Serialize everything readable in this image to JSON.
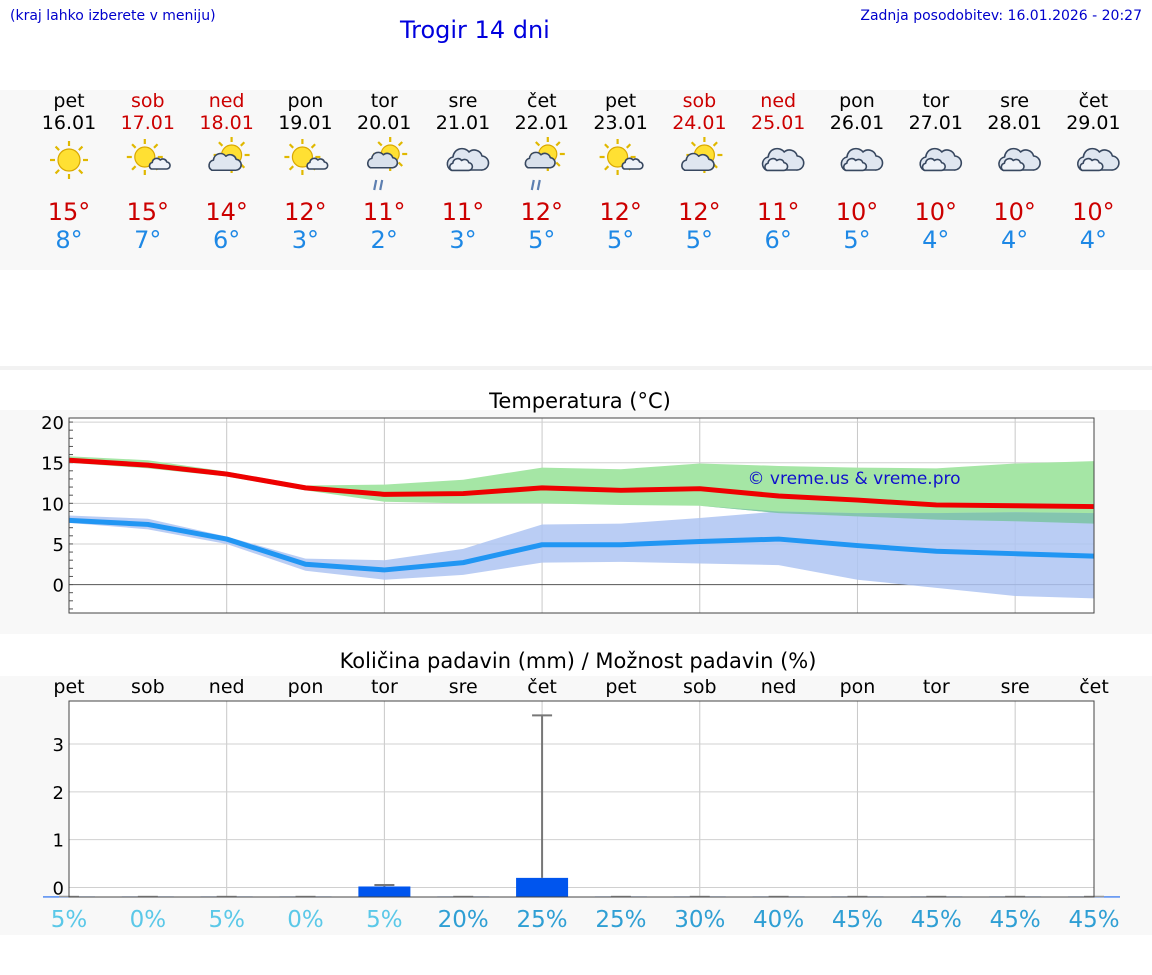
{
  "header": {
    "menu_hint": "(kraj lahko izberete v meniju)",
    "title": "Trogir 14 dni",
    "updated": "Zadnja posodobitev: 16.01.2026 - 20:27"
  },
  "days": [
    {
      "name": "pet",
      "date": "16.01",
      "weekend": false,
      "icon": "sun-icon",
      "tmax": "15°",
      "tmin": "8°"
    },
    {
      "name": "sob",
      "date": "17.01",
      "weekend": true,
      "icon": "sun-small-cloud-icon",
      "tmax": "15°",
      "tmin": "7°"
    },
    {
      "name": "ned",
      "date": "18.01",
      "weekend": true,
      "icon": "sun-cloud-icon",
      "tmax": "14°",
      "tmin": "6°"
    },
    {
      "name": "pon",
      "date": "19.01",
      "weekend": false,
      "icon": "sun-small-cloud-icon",
      "tmax": "12°",
      "tmin": "3°"
    },
    {
      "name": "tor",
      "date": "20.01",
      "weekend": false,
      "icon": "sun-cloud-rain-icon",
      "tmax": "11°",
      "tmin": "2°"
    },
    {
      "name": "sre",
      "date": "21.01",
      "weekend": false,
      "icon": "cloud-icon",
      "tmax": "11°",
      "tmin": "3°"
    },
    {
      "name": "čet",
      "date": "22.01",
      "weekend": false,
      "icon": "sun-cloud-rain-icon",
      "tmax": "12°",
      "tmin": "5°"
    },
    {
      "name": "pet",
      "date": "23.01",
      "weekend": false,
      "icon": "sun-small-cloud-icon",
      "tmax": "12°",
      "tmin": "5°"
    },
    {
      "name": "sob",
      "date": "24.01",
      "weekend": true,
      "icon": "sun-cloud-icon",
      "tmax": "12°",
      "tmin": "5°"
    },
    {
      "name": "ned",
      "date": "25.01",
      "weekend": true,
      "icon": "cloud-icon",
      "tmax": "11°",
      "tmin": "6°"
    },
    {
      "name": "pon",
      "date": "26.01",
      "weekend": false,
      "icon": "cloud-icon",
      "tmax": "10°",
      "tmin": "5°"
    },
    {
      "name": "tor",
      "date": "27.01",
      "weekend": false,
      "icon": "cloud-icon",
      "tmax": "10°",
      "tmin": "4°"
    },
    {
      "name": "sre",
      "date": "28.01",
      "weekend": false,
      "icon": "cloud-icon",
      "tmax": "10°",
      "tmin": "4°"
    },
    {
      "name": "čet",
      "date": "29.01",
      "weekend": false,
      "icon": "cloud-icon",
      "tmax": "10°",
      "tmin": "4°"
    }
  ],
  "colors": {
    "weekend": "#cc0000",
    "weekday": "#000000",
    "tmax": "#cc0000",
    "tmin": "#1e88e5",
    "max_line": "#ee0000",
    "min_line": "#2196f3",
    "max_band": "#a5e6a5",
    "min_band": "#aec4f2",
    "overlap_band": "#80c4a8",
    "bar": "#0055ee",
    "prob_low": "#5bc8e8",
    "prob_high": "#2f9fd4"
  },
  "chart_data": [
    {
      "type": "line",
      "title": "Temperatura (°C)",
      "watermark": "© vreme.us & vreme.pro",
      "ylim": [
        -3.5,
        20.5
      ],
      "yticks": [
        0,
        5,
        10,
        15,
        20
      ],
      "x": [
        0,
        1,
        2,
        3,
        4,
        5,
        6,
        7,
        8,
        9,
        10,
        11,
        12,
        13
      ],
      "series": [
        {
          "name": "max",
          "values": [
            15.3,
            14.7,
            13.6,
            11.9,
            11.1,
            11.2,
            11.9,
            11.6,
            11.8,
            10.9,
            10.4,
            9.8,
            9.7,
            9.6
          ]
        },
        {
          "name": "min",
          "values": [
            7.9,
            7.4,
            5.6,
            2.5,
            1.8,
            2.7,
            4.9,
            4.9,
            5.3,
            5.6,
            4.8,
            4.1,
            3.8,
            3.5
          ]
        }
      ],
      "max_band": {
        "low": [
          15.0,
          14.3,
          13.3,
          11.6,
          10.2,
          10.0,
          10.0,
          9.8,
          9.7,
          8.8,
          8.4,
          8.0,
          7.8,
          7.5
        ],
        "high": [
          15.8,
          15.3,
          13.9,
          12.2,
          12.3,
          12.9,
          14.4,
          14.2,
          14.9,
          14.6,
          14.4,
          14.3,
          14.9,
          15.2
        ]
      },
      "min_band": {
        "low": [
          7.6,
          6.8,
          5.0,
          1.7,
          0.6,
          1.2,
          2.7,
          2.8,
          2.6,
          2.4,
          0.6,
          -0.4,
          -1.4,
          -1.7
        ],
        "high": [
          8.5,
          8.1,
          5.9,
          3.2,
          3.0,
          4.4,
          7.4,
          7.5,
          8.2,
          9.0,
          8.8,
          8.8,
          8.9,
          8.8
        ]
      }
    },
    {
      "type": "bar",
      "title": "Količina padavin (mm) / Možnost padavin (%)",
      "ylim": [
        -0.2,
        3.9
      ],
      "yticks": [
        0,
        1,
        2,
        3
      ],
      "categories": [
        "pet",
        "sob",
        "ned",
        "pon",
        "tor",
        "sre",
        "čet",
        "pet",
        "sob",
        "ned",
        "pon",
        "tor",
        "sre",
        "čet"
      ],
      "values": [
        0,
        0,
        0,
        0,
        0.02,
        0,
        0.2,
        0,
        0,
        0,
        0,
        0,
        0,
        0
      ],
      "error_high": [
        0,
        0,
        0,
        0,
        0.05,
        0,
        3.6,
        0,
        0,
        0,
        0,
        0,
        0,
        0
      ],
      "probability": [
        "5%",
        "0%",
        "5%",
        "0%",
        "5%",
        "20%",
        "25%",
        "25%",
        "30%",
        "40%",
        "45%",
        "45%",
        "45%",
        "45%"
      ]
    }
  ]
}
